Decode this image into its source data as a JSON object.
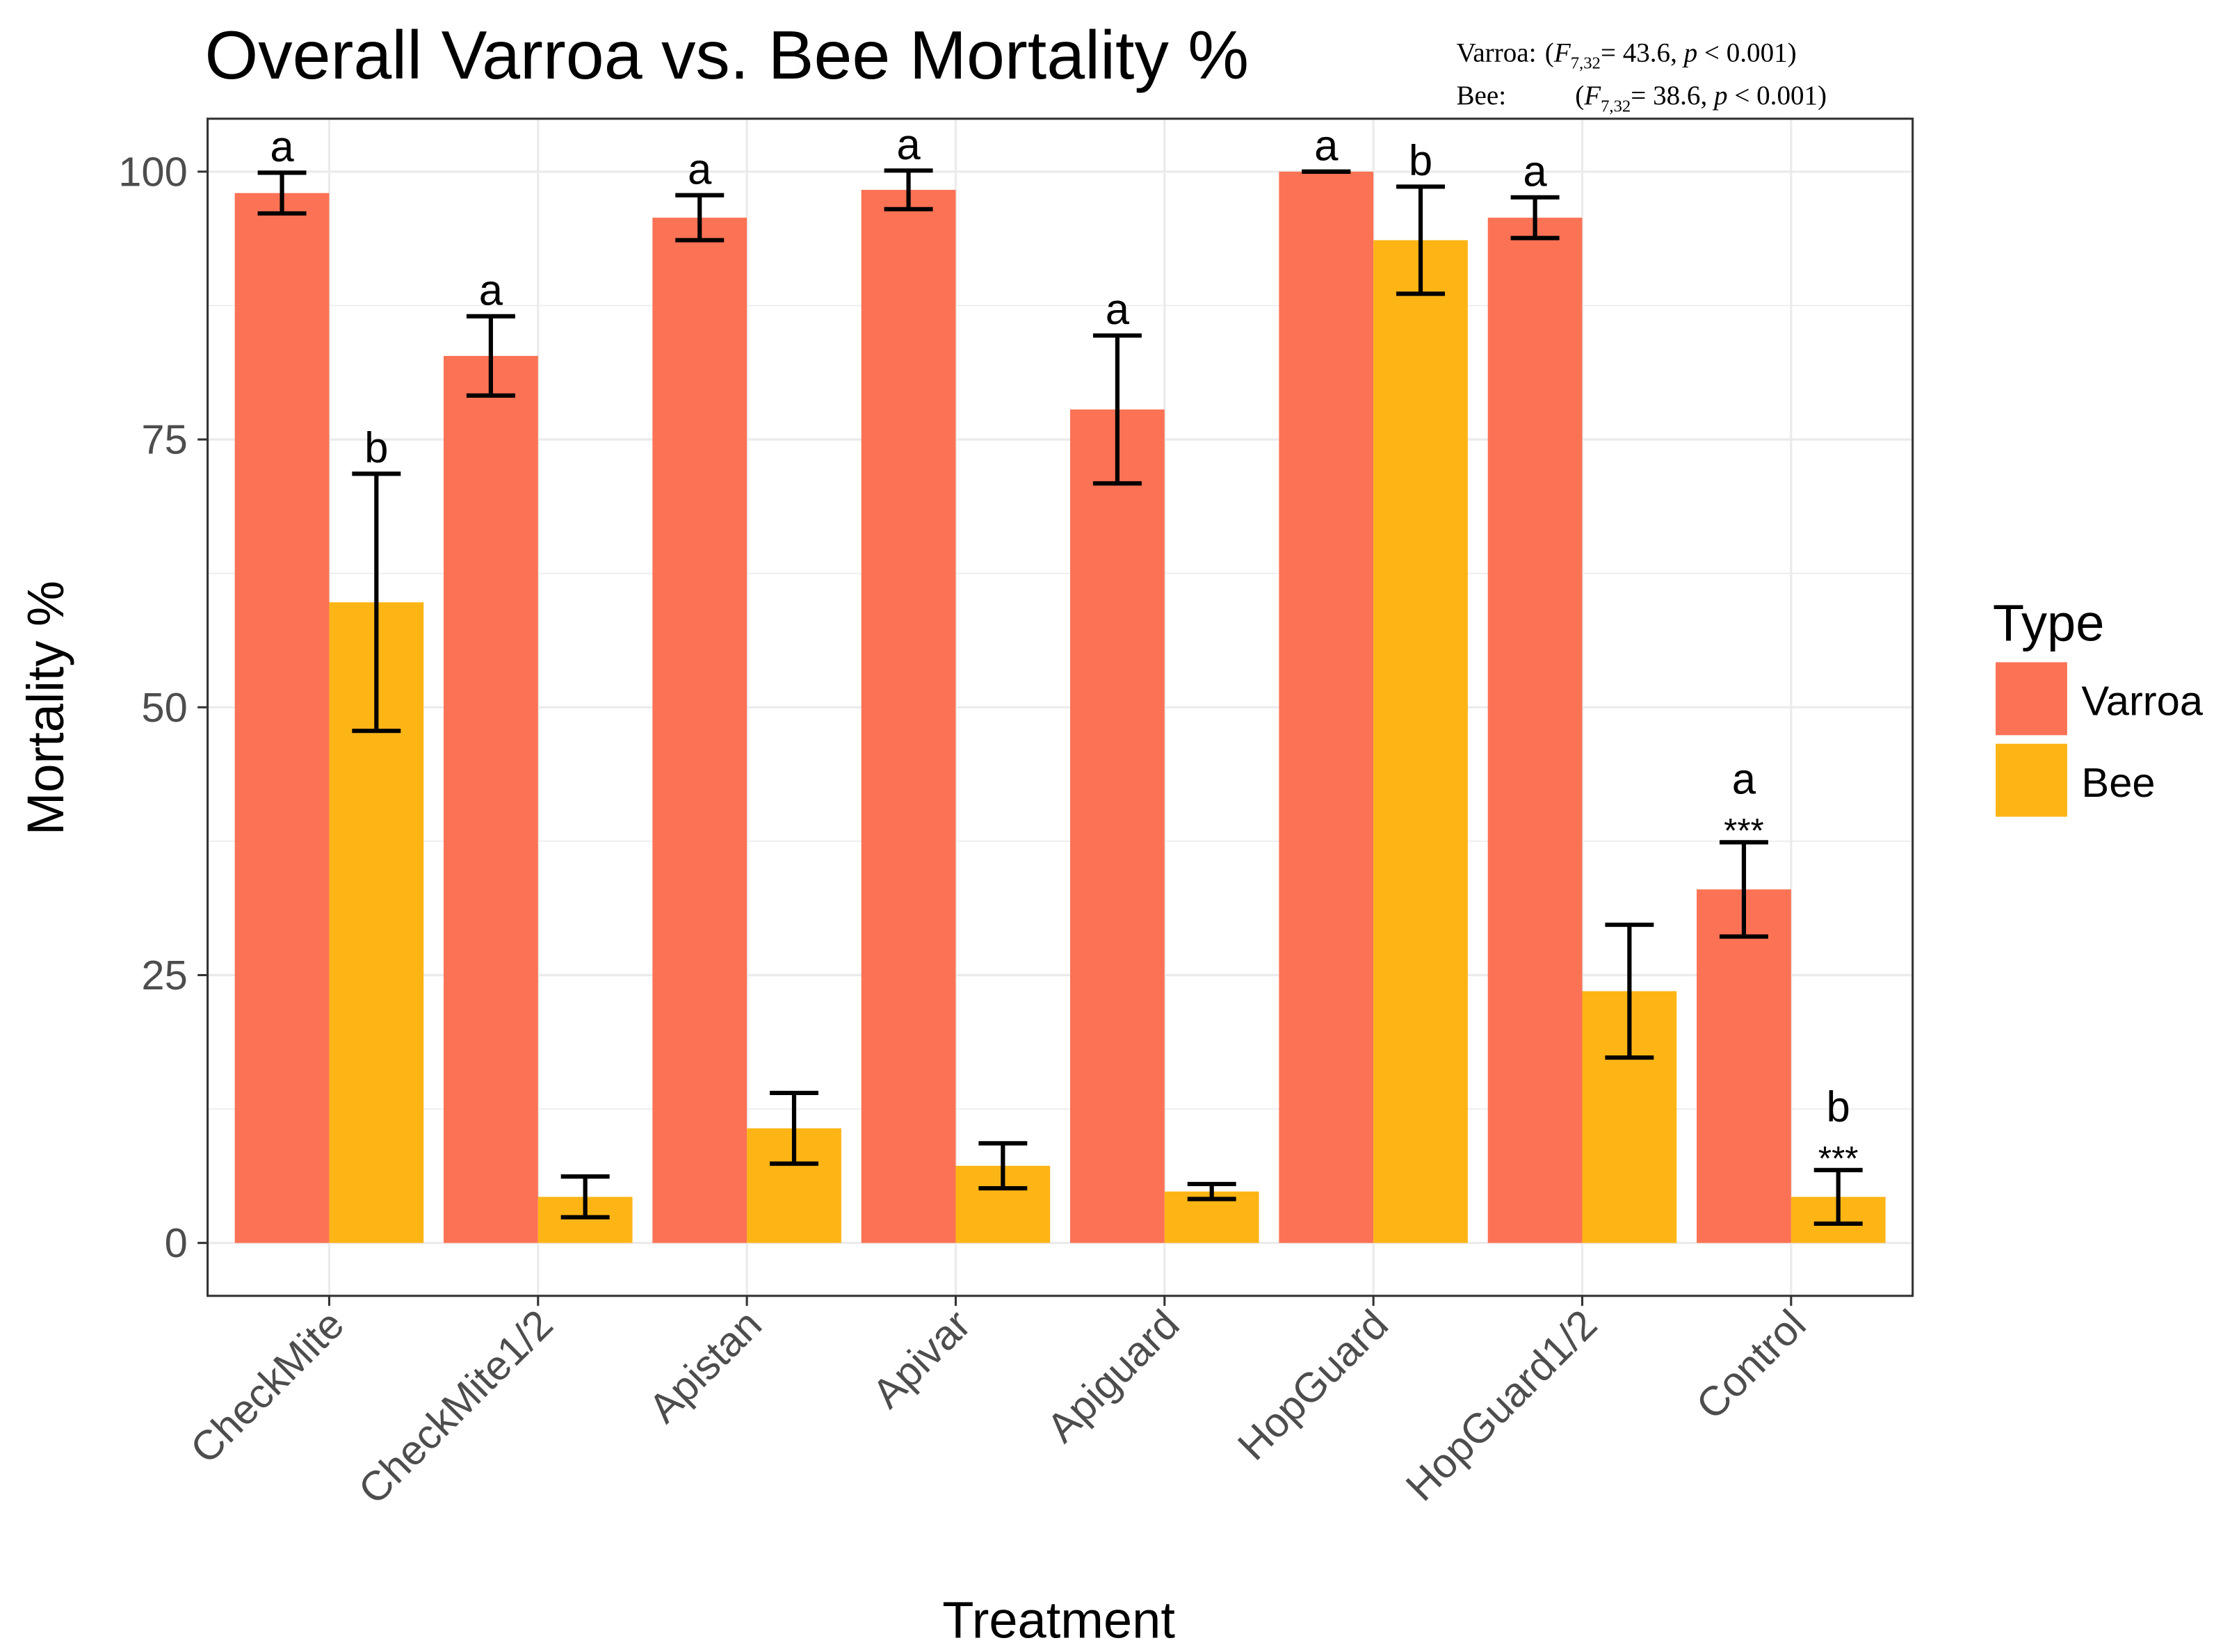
{
  "chart_data": {
    "type": "bar",
    "title": "Overall Varroa vs. Bee Mortality %",
    "xlabel": "Treatment",
    "ylabel": "Mortality %",
    "ylim": [
      -5,
      105
    ],
    "yticks": [
      0,
      25,
      50,
      75,
      100
    ],
    "grid": true,
    "categories": [
      "CheckMite",
      "CheckMite1/2",
      "Apistan",
      "Apivar",
      "Apiguard",
      "HopGuard",
      "HopGuard1/2",
      "Control"
    ],
    "legend": {
      "title": "Type",
      "placement": "right"
    },
    "series": [
      {
        "name": "Varroa",
        "color": "#FC7255",
        "values": [
          98.0,
          82.8,
          95.7,
          98.3,
          77.8,
          100.0,
          95.7,
          33.0
        ],
        "errors": [
          1.9,
          3.7,
          2.1,
          1.8,
          6.9,
          0.0,
          1.9,
          4.4
        ],
        "letters": [
          "a",
          "a",
          "a",
          "a",
          "a",
          "a",
          "a",
          "a"
        ],
        "stars": [
          "",
          "",
          "",
          "",
          "",
          "",
          "",
          "***"
        ]
      },
      {
        "name": "Bee",
        "color": "#FDB515",
        "values": [
          59.8,
          4.3,
          10.7,
          7.2,
          4.8,
          93.6,
          23.5,
          4.3
        ],
        "errors": [
          12.0,
          1.9,
          3.3,
          2.1,
          0.7,
          5.0,
          6.2,
          2.5
        ],
        "letters": [
          "b",
          "",
          "",
          "",
          "",
          "b",
          "",
          "b"
        ],
        "stars": [
          "",
          "",
          "",
          "",
          "",
          "",
          "",
          "***"
        ]
      }
    ],
    "annotation": {
      "varroa_label": "Varroa:",
      "bee_label": "Bee:",
      "F": "F",
      "df": "7,32",
      "varroa_stat": "= 43.6, ",
      "bee_stat": "= 38.6, ",
      "p": "p",
      "p_text": " < 0.001)",
      "open": "("
    }
  }
}
